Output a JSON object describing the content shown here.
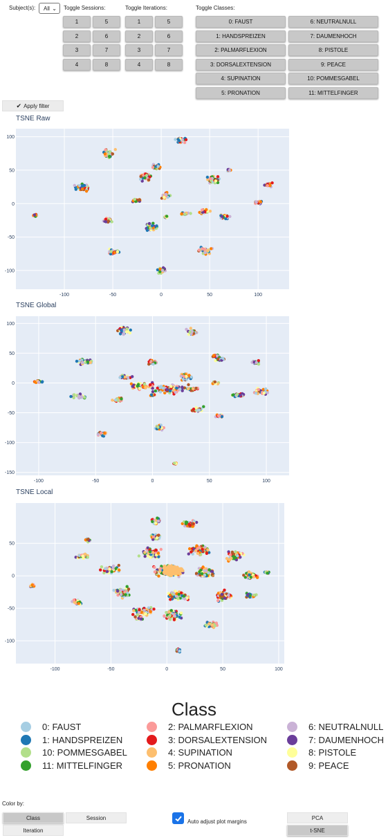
{
  "controls": {
    "subject_label": "Subject(s):",
    "subject_value": "All",
    "sessions_label": "Toggle Sessions:",
    "sessions": [
      "1",
      "5",
      "2",
      "6",
      "3",
      "7",
      "4",
      "8"
    ],
    "iterations_label": "Toggle Iterations:",
    "iterations": [
      "1",
      "5",
      "2",
      "6",
      "3",
      "7",
      "4",
      "8"
    ],
    "classes_label": "Toggle Classes:",
    "classes": [
      "0: FAUST",
      "6: NEUTRALNULL",
      "1: HANDSPREIZEN",
      "7: DAUMENHOCH",
      "2: PALMARFLEXION",
      "8: PISTOLE",
      "3: DORSALEXTENSION",
      "9: PEACE",
      "4: SUPINATION",
      "10: POMMESGABEL",
      "5: PRONATION",
      "11: MITTELFINGER"
    ],
    "apply_label": "Apply filter"
  },
  "plots": {
    "raw_title": "TSNE Raw",
    "global_title": "TSNE Global",
    "local_title": "TSNE Local"
  },
  "colors": {
    "0": "#a6cee3",
    "1": "#1f78b4",
    "2": "#fb9a99",
    "3": "#e31a1c",
    "4": "#fdbf6f",
    "5": "#ff7f00",
    "6": "#cab2d6",
    "7": "#6a3d9a",
    "8": "#ffff99",
    "9": "#b15928",
    "10": "#b2df8a",
    "11": "#33a02c",
    "plot_bg": "#e5ecf6",
    "grid": "#ffffff",
    "tick_text": "#2a3f5f"
  },
  "chart_data": [
    {
      "type": "scatter",
      "title": "TSNE Raw",
      "xlim": [
        -150,
        132
      ],
      "ylim": [
        -128,
        112
      ],
      "xticks": [
        -100,
        -50,
        0,
        50,
        100
      ],
      "yticks": [
        -100,
        -50,
        0,
        50,
        100
      ],
      "grid": true,
      "clusters": [
        [
          -55,
          75,
          8,
          9
        ],
        [
          -80,
          25,
          12,
          7
        ],
        [
          -130,
          -18,
          3,
          2
        ],
        [
          -55,
          -25,
          7,
          4
        ],
        [
          -50,
          -72,
          8,
          5
        ],
        [
          -25,
          5,
          8,
          3
        ],
        [
          -15,
          40,
          8,
          7
        ],
        [
          -5,
          55,
          6,
          6
        ],
        [
          5,
          12,
          6,
          6
        ],
        [
          -10,
          -35,
          8,
          9
        ],
        [
          0,
          -100,
          6,
          6
        ],
        [
          5,
          -20,
          3,
          2
        ],
        [
          20,
          95,
          7,
          5
        ],
        [
          25,
          -15,
          6,
          3
        ],
        [
          45,
          -70,
          10,
          7
        ],
        [
          65,
          -20,
          8,
          5
        ],
        [
          45,
          -12,
          7,
          5
        ],
        [
          55,
          35,
          10,
          7
        ],
        [
          70,
          50,
          3,
          2
        ],
        [
          100,
          2,
          6,
          3
        ],
        [
          110,
          28,
          5,
          4
        ]
      ]
    },
    {
      "type": "scatter",
      "title": "TSNE Global",
      "xlim": [
        -120,
        120
      ],
      "ylim": [
        -155,
        112
      ],
      "xticks": [
        -100,
        -50,
        0,
        50,
        100
      ],
      "yticks": [
        -150,
        -100,
        -50,
        0,
        50,
        100
      ],
      "grid": true,
      "clusters": [
        [
          -100,
          2,
          5,
          4
        ],
        [
          -60,
          35,
          10,
          6
        ],
        [
          -65,
          -22,
          8,
          5
        ],
        [
          -45,
          -85,
          6,
          5
        ],
        [
          -25,
          88,
          8,
          8
        ],
        [
          -25,
          10,
          8,
          4
        ],
        [
          -30,
          -28,
          7,
          5
        ],
        [
          -10,
          -5,
          14,
          7
        ],
        [
          0,
          35,
          6,
          5
        ],
        [
          5,
          -75,
          6,
          5
        ],
        [
          0,
          -20,
          3,
          2
        ],
        [
          20,
          -135,
          2,
          2
        ],
        [
          30,
          10,
          8,
          7
        ],
        [
          35,
          -10,
          6,
          4
        ],
        [
          35,
          85,
          6,
          8
        ],
        [
          40,
          -45,
          8,
          6
        ],
        [
          58,
          -55,
          5,
          3
        ],
        [
          55,
          45,
          4,
          3
        ],
        [
          60,
          40,
          6,
          4
        ],
        [
          75,
          -20,
          10,
          4
        ],
        [
          90,
          35,
          5,
          4
        ],
        [
          95,
          -15,
          8,
          8
        ],
        [
          55,
          0,
          4,
          3
        ],
        [
          15,
          -10,
          20,
          9
        ]
      ]
    },
    {
      "type": "scatter",
      "title": "TSNE Local",
      "xlim": [
        -135,
        105
      ],
      "ylim": [
        -135,
        112
      ],
      "xticks": [
        -100,
        -50,
        0,
        50,
        100
      ],
      "yticks": [
        -100,
        -50,
        0,
        50
      ],
      "grid": true,
      "clusters": [
        [
          -120,
          -15,
          3,
          3
        ],
        [
          -80,
          -40,
          6,
          6
        ],
        [
          -70,
          55,
          4,
          4
        ],
        [
          -75,
          30,
          8,
          5
        ],
        [
          -50,
          10,
          12,
          8
        ],
        [
          -40,
          -25,
          10,
          10
        ],
        [
          -20,
          -55,
          12,
          10
        ],
        [
          -15,
          35,
          12,
          10
        ],
        [
          0,
          8,
          18,
          12
        ],
        [
          10,
          -30,
          12,
          10
        ],
        [
          5,
          -60,
          10,
          10
        ],
        [
          30,
          40,
          12,
          10
        ],
        [
          35,
          5,
          12,
          10
        ],
        [
          50,
          -30,
          10,
          10
        ],
        [
          60,
          30,
          10,
          10
        ],
        [
          75,
          -30,
          6,
          6
        ],
        [
          75,
          0,
          8,
          8
        ],
        [
          90,
          5,
          3,
          3
        ],
        [
          -10,
          85,
          6,
          8
        ],
        [
          20,
          80,
          8,
          8
        ],
        [
          10,
          -115,
          3,
          3
        ],
        [
          -25,
          -65,
          6,
          4
        ],
        [
          40,
          -75,
          8,
          6
        ],
        [
          -10,
          60,
          6,
          6
        ]
      ],
      "dense_core": [
        5,
        8,
        10,
        8
      ]
    }
  ],
  "legend": {
    "title": "Class",
    "items": [
      {
        "label": "0: FAUST",
        "cls": "0"
      },
      {
        "label": "1: HANDSPREIZEN",
        "cls": "1"
      },
      {
        "label": "10: POMMESGABEL",
        "cls": "10"
      },
      {
        "label": "11: MITTELFINGER",
        "cls": "11"
      },
      {
        "label": "2: PALMARFLEXION",
        "cls": "2"
      },
      {
        "label": "3: DORSALEXTENSION",
        "cls": "3"
      },
      {
        "label": "4: SUPINATION",
        "cls": "4"
      },
      {
        "label": "5: PRONATION",
        "cls": "5"
      },
      {
        "label": "6: NEUTRALNULL",
        "cls": "6"
      },
      {
        "label": "7: DAUMENHOCH",
        "cls": "7"
      },
      {
        "label": "8: PISTOLE",
        "cls": "8"
      },
      {
        "label": "9: PEACE",
        "cls": "9"
      }
    ]
  },
  "bottom": {
    "colorby_label": "Color by:",
    "class_label": "Class",
    "session_label": "Session",
    "iteration_label": "Iteration",
    "auto_adjust_label": "Auto adjust plot margins",
    "pca_label": "PCA",
    "tsne_label": "t-SNE"
  }
}
